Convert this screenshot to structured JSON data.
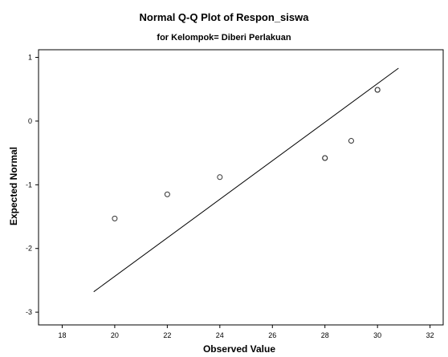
{
  "chart_data": {
    "type": "scatter",
    "title": "Normal Q-Q Plot of Respon_siswa",
    "subtitle": "for Kelompok= Diberi Perlakuan",
    "xlabel": "Observed Value",
    "ylabel": "Expected Normal",
    "xlim": [
      17.1,
      32.5
    ],
    "ylim": [
      -3.2,
      1.12
    ],
    "x_ticks": [
      18,
      20,
      22,
      24,
      26,
      28,
      30,
      32
    ],
    "y_ticks": [
      1,
      0,
      -1,
      -2,
      -3
    ],
    "grid": false,
    "legend": "none",
    "points": [
      {
        "x": 20,
        "y": -1.53
      },
      {
        "x": 22,
        "y": -1.15
      },
      {
        "x": 24,
        "y": -0.88
      },
      {
        "x": 28,
        "y": -0.58
      },
      {
        "x": 28,
        "y": -0.58
      },
      {
        "x": 29,
        "y": -0.31
      },
      {
        "x": 30,
        "y": 0.49
      },
      {
        "x": 30,
        "y": 0.49
      }
    ],
    "reference_line": {
      "x": [
        19.2,
        30.8
      ],
      "y": [
        -2.68,
        0.83
      ]
    },
    "colors": {
      "points": "#333333",
      "line": "#000000",
      "frame": "#000000"
    }
  }
}
